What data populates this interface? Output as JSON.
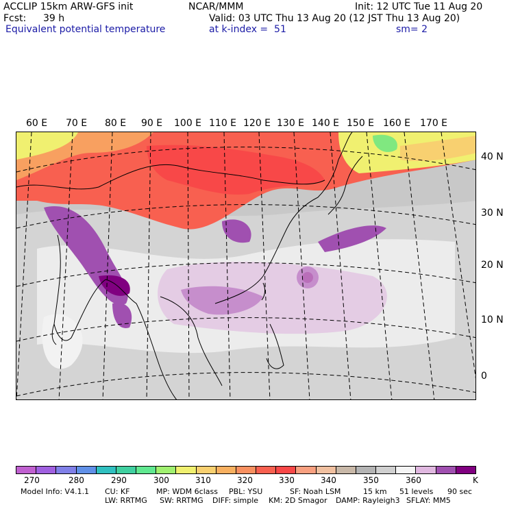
{
  "header": {
    "model": "ACCLIP 15km ARW-GFS init",
    "org": "NCAR/MMM",
    "init": "Init: 12 UTC Tue 11 Aug 20",
    "fcst_label": "Fcst:",
    "fcst_value": "39 h",
    "valid": "Valid: 03 UTC Thu 13 Aug 20 (12 JST Thu 13 Aug 20)",
    "field": "Equivalent potential temperature",
    "level": "at k-index =  51",
    "smooth": "sm= 2"
  },
  "map": {
    "lon_labels": [
      "60 E",
      "70 E",
      "80 E",
      "90 E",
      "100 E",
      "110 E",
      "120 E",
      "130 E",
      "140 E",
      "150 E",
      "160 E",
      "170 E"
    ],
    "lat_labels": [
      "40 N",
      "30 N",
      "20 N",
      "10 N",
      "0"
    ]
  },
  "colorbar": {
    "colors": [
      "#c060d0",
      "#a060e0",
      "#8080e8",
      "#6090e8",
      "#30c0c0",
      "#40d0a0",
      "#60e890",
      "#a0f070",
      "#f0f070",
      "#f8d070",
      "#f8b060",
      "#f89060",
      "#f86050",
      "#f84848",
      "#f8a080",
      "#f0c0a0",
      "#c8b8a8",
      "#b4b4b4",
      "#d0d0d0",
      "#f4f4f4",
      "#e0b8e0",
      "#a050b0",
      "#800080"
    ],
    "labels": [
      "270",
      "280",
      "290",
      "300",
      "310",
      "320",
      "330",
      "340",
      "350",
      "360"
    ],
    "unit": "K"
  },
  "footer": {
    "line1": [
      "Model Info: V4.1.1",
      "CU: KF",
      "MP: WDM 6class",
      "PBL: YSU",
      "SF: Noah LSM",
      "15 km",
      "51 levels",
      "90 sec"
    ],
    "line2": [
      "LW: RRTMG",
      "SW: RRTMG",
      "DIFF: simple",
      "KM: 2D Smagor",
      "DAMP: Rayleigh3",
      "SFLAY: MM5"
    ]
  }
}
